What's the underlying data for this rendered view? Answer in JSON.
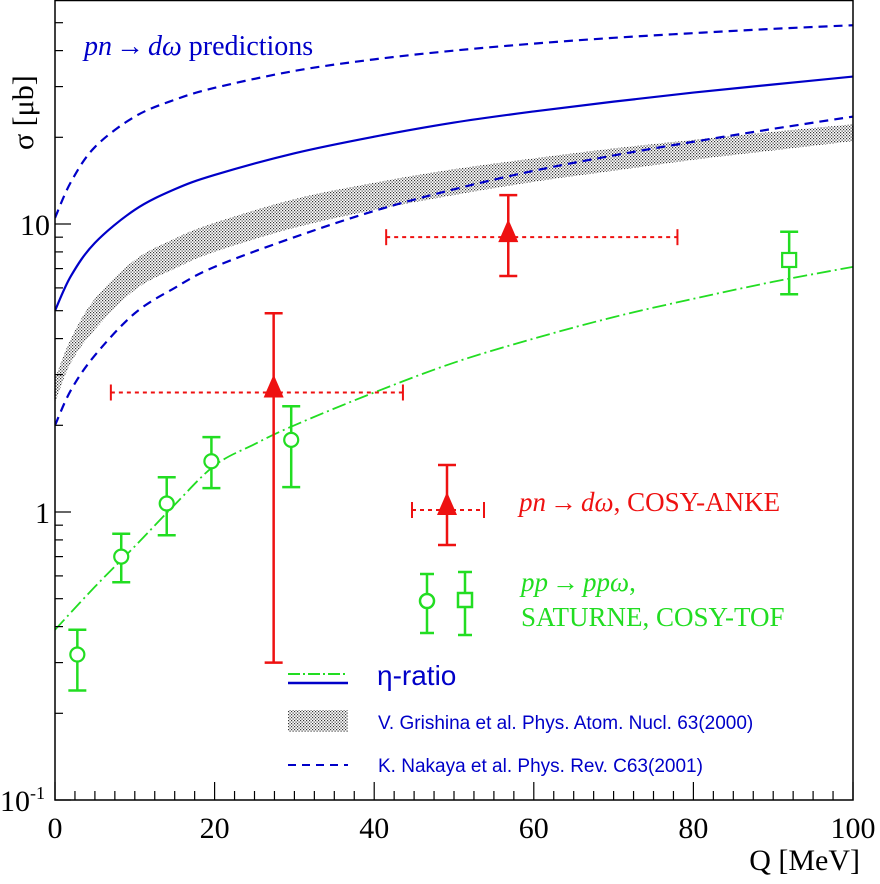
{
  "chart_data": {
    "type": "scatter",
    "title": "",
    "xlabel": "Q [MeV]",
    "ylabel": "σ [μb]",
    "xlim": [
      0,
      100
    ],
    "ylim": [
      0.1,
      60
    ],
    "yscale": "log",
    "x_ticks": [
      "0",
      "20",
      "40",
      "60",
      "80",
      "100"
    ],
    "y_ticks": [
      {
        "value": 0.1,
        "label": "10",
        "sup": "-1"
      },
      {
        "value": 1,
        "label": "1",
        "sup": ""
      },
      {
        "value": 10,
        "label": "10",
        "sup": ""
      }
    ],
    "annotation": {
      "italic": "pn",
      "arrow": "→",
      "italic2": "dω",
      "text": " predictions"
    },
    "series": [
      {
        "name": "eta-ratio pn→dω",
        "kind": "line",
        "style": "solid",
        "color": "#0000c8",
        "x": [
          0,
          2,
          5,
          10,
          15,
          20,
          30,
          40,
          50,
          60,
          70,
          80,
          90,
          100
        ],
        "y": [
          5.0,
          6.6,
          8.6,
          11.2,
          13.2,
          14.8,
          17.6,
          20.1,
          22.5,
          24.6,
          26.6,
          28.6,
          30.5,
          32.5
        ]
      },
      {
        "name": "Grishina band",
        "kind": "band",
        "color": "#555555",
        "x": [
          0,
          2,
          5,
          10,
          15,
          20,
          30,
          40,
          50,
          60,
          70,
          80,
          90,
          100
        ],
        "y_low": [
          2.4,
          3.3,
          4.3,
          5.9,
          7.0,
          8.0,
          9.7,
          11.2,
          12.6,
          14.0,
          15.3,
          16.7,
          18.0,
          19.4
        ],
        "y_high": [
          2.9,
          4.0,
          5.5,
          7.5,
          8.9,
          10.1,
          12.2,
          13.9,
          15.5,
          16.9,
          18.3,
          19.6,
          20.9,
          22.2
        ]
      },
      {
        "name": "Nakaya upper",
        "kind": "line",
        "style": "dashed",
        "color": "#0000c8",
        "x": [
          0,
          2,
          5,
          10,
          15,
          20,
          30,
          40,
          50,
          60,
          70,
          80,
          90,
          100
        ],
        "y": [
          10.5,
          14.0,
          18.5,
          23.6,
          27.0,
          29.7,
          34.0,
          37.3,
          40.0,
          42.3,
          44.3,
          46.0,
          47.6,
          49.0
        ]
      },
      {
        "name": "Nakaya lower",
        "kind": "line",
        "style": "dashed",
        "color": "#0000c8",
        "x": [
          0,
          2,
          5,
          10,
          15,
          20,
          30,
          40,
          50,
          60,
          70,
          80,
          90,
          100
        ],
        "y": [
          2.0,
          2.65,
          3.5,
          4.9,
          6.0,
          7.1,
          9.0,
          11.1,
          13.2,
          15.3,
          17.3,
          19.3,
          21.4,
          23.6
        ]
      },
      {
        "name": "eta-ratio pp→ppω",
        "kind": "line",
        "style": "dashdot",
        "color": "#22dd22",
        "x": [
          0,
          5,
          10,
          15,
          20,
          25,
          30,
          40,
          50,
          60,
          70,
          80,
          90,
          100
        ],
        "y": [
          0.39,
          0.55,
          0.76,
          1.06,
          1.45,
          1.72,
          2.0,
          2.6,
          3.3,
          4.0,
          4.75,
          5.5,
          6.3,
          7.1
        ]
      },
      {
        "name": "pn→dω, COSY-ANKE",
        "kind": "points",
        "marker": "triangle",
        "color": "#ee1111",
        "points": [
          {
            "x": 27.4,
            "y": 2.6,
            "y_low": 0.3,
            "y_high": 4.9,
            "x_low": 7.0,
            "x_high": 43.6
          },
          {
            "x": 56.8,
            "y": 9.0,
            "y_low": 6.6,
            "y_high": 12.6,
            "x_low": 41.5,
            "x_high": 78.0
          }
        ]
      },
      {
        "name": "pp→ppω, SATURNE",
        "kind": "points",
        "marker": "circle",
        "color": "#22dd22",
        "points": [
          {
            "x": 2.8,
            "y": 0.32,
            "y_low": 0.24,
            "y_high": 0.39
          },
          {
            "x": 8.3,
            "y": 0.7,
            "y_low": 0.57,
            "y_high": 0.84
          },
          {
            "x": 14.0,
            "y": 1.07,
            "y_low": 0.83,
            "y_high": 1.32
          },
          {
            "x": 19.6,
            "y": 1.5,
            "y_low": 1.21,
            "y_high": 1.82
          },
          {
            "x": 29.6,
            "y": 1.78,
            "y_low": 1.22,
            "y_high": 2.33
          }
        ]
      },
      {
        "name": "pp→ppω, COSY-TOF",
        "kind": "points",
        "marker": "square",
        "color": "#22dd22",
        "points": [
          {
            "x": 92.0,
            "y": 7.5,
            "y_low": 5.7,
            "y_high": 9.4
          }
        ]
      }
    ],
    "legend": {
      "placement": "bottom-right",
      "entries": [
        {
          "italic": "pn",
          "arrow": "→",
          "italic2": "dω",
          "text": ", COSY-ANKE",
          "color": "#ee1111"
        },
        {
          "italic": "pp",
          "arrow": "→",
          "italic2": "ppω",
          "text": ",",
          "color": "#22dd22"
        },
        {
          "text": "SATURNE, COSY-TOF",
          "color": "#22dd22"
        },
        {
          "text": "η-ratio",
          "color": "#0000c8"
        },
        {
          "text": "V. Grishina et al. Phys. Atom. Nucl. 63(2000)",
          "color": "#0000c8"
        },
        {
          "text": "K. Nakaya et al. Phys. Rev. C63(2001)",
          "color": "#0000c8"
        }
      ]
    }
  }
}
